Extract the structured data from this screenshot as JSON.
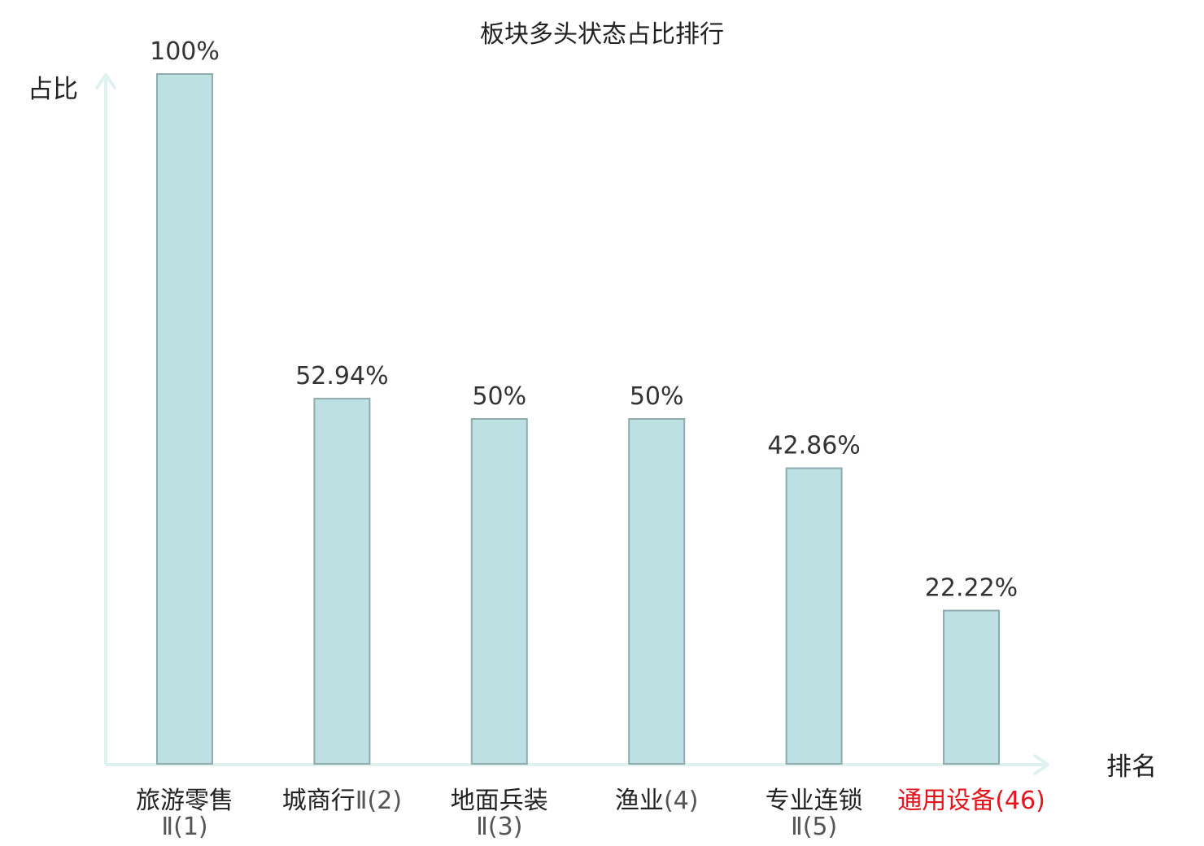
{
  "chart_data": {
    "type": "bar",
    "title": "板块多头状态占比排行",
    "ylabel": "占比",
    "xlabel": "排名",
    "ylim": [
      0,
      100
    ],
    "grid": false,
    "categories": [
      {
        "name": "旅游零售",
        "rank": "Ⅱ(1)",
        "highlight": false
      },
      {
        "name": "城商行",
        "rank": "Ⅱ(2)",
        "highlight": false
      },
      {
        "name": "地面兵装",
        "rank": "Ⅱ(3)",
        "highlight": false
      },
      {
        "name": "渔业",
        "rank": "(4)",
        "highlight": false
      },
      {
        "name": "专业连锁",
        "rank": "Ⅱ(5)",
        "highlight": false
      },
      {
        "name": "通用设备",
        "rank": "(46)",
        "highlight": true
      }
    ],
    "values": [
      100,
      52.94,
      50,
      50,
      42.86,
      22.22
    ],
    "value_labels": [
      "100%",
      "52.94%",
      "50%",
      "50%",
      "42.86%",
      "22.22%"
    ],
    "colors": {
      "bar_fill": "#bde0e2",
      "bar_stroke": "#8fabae",
      "axis": "#e0f2f0",
      "highlight_text": "#e8141b"
    }
  }
}
